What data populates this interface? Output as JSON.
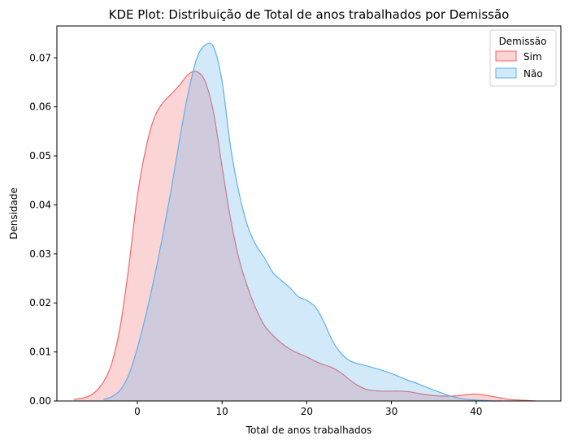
{
  "chart_data": {
    "type": "area",
    "title": "KDE Plot: Distribuição de Total de anos trabalhados por Demissão",
    "xlabel": "Total de anos trabalhados",
    "ylabel": "Densidade",
    "xlim": [
      -9.5,
      50
    ],
    "ylim": [
      0,
      0.0765
    ],
    "x_ticks": [
      0,
      10,
      20,
      30,
      40
    ],
    "y_ticks": [
      0.0,
      0.01,
      0.02,
      0.03,
      0.04,
      0.05,
      0.06,
      0.07
    ],
    "y_tick_labels": [
      "0.00",
      "0.01",
      "0.02",
      "0.03",
      "0.04",
      "0.05",
      "0.06",
      "0.07"
    ],
    "legend": {
      "title": "Demissão",
      "placement": "top-right"
    },
    "grid": false,
    "series": [
      {
        "name": "Sim",
        "color": "#f0686d",
        "fill": "#fdd3d5",
        "x": [
          -7.5,
          -6,
          -5,
          -4,
          -3,
          -2,
          -1,
          0,
          1,
          2,
          3,
          4,
          5,
          6,
          7,
          8,
          9,
          10,
          11,
          12,
          13,
          14,
          15,
          16,
          17,
          18,
          19,
          20,
          21,
          22,
          23,
          24,
          25,
          26,
          27,
          28,
          29,
          30,
          31,
          32,
          33,
          34,
          35,
          36,
          37,
          38,
          39,
          40,
          41,
          42,
          43,
          44,
          45,
          46,
          47
        ],
        "y": [
          0.0003,
          0.0008,
          0.0018,
          0.0039,
          0.0078,
          0.0154,
          0.0276,
          0.0418,
          0.0515,
          0.0578,
          0.0608,
          0.0626,
          0.0645,
          0.0666,
          0.0672,
          0.0652,
          0.0588,
          0.0478,
          0.0372,
          0.029,
          0.0233,
          0.0188,
          0.0154,
          0.0134,
          0.0118,
          0.0106,
          0.0097,
          0.009,
          0.0081,
          0.0074,
          0.0068,
          0.0058,
          0.0044,
          0.0032,
          0.0024,
          0.0021,
          0.002,
          0.002,
          0.002,
          0.0019,
          0.0016,
          0.0013,
          0.0011,
          0.001,
          0.001,
          0.0011,
          0.0013,
          0.0014,
          0.0012,
          0.0009,
          0.0006,
          0.0003,
          0.0002,
          0.0001,
          0.0
        ]
      },
      {
        "name": "Não",
        "color": "#5fb0ec",
        "fill": "#cfe4f8",
        "x": [
          -4,
          -3,
          -2,
          -1,
          0,
          1,
          2,
          3,
          4,
          5,
          6,
          7,
          8,
          9,
          10,
          11,
          12,
          13,
          14,
          15,
          16,
          17,
          18,
          19,
          20,
          21,
          22,
          23,
          24,
          25,
          26,
          27,
          28,
          29,
          30,
          31,
          32,
          33,
          34,
          35,
          36,
          37,
          38,
          39,
          40,
          41,
          42,
          43
        ],
        "y": [
          0.0003,
          0.0009,
          0.0023,
          0.0054,
          0.0108,
          0.0175,
          0.0252,
          0.0338,
          0.0432,
          0.0535,
          0.0628,
          0.0698,
          0.0726,
          0.0722,
          0.0652,
          0.0519,
          0.0425,
          0.0358,
          0.0318,
          0.0292,
          0.0262,
          0.0246,
          0.0231,
          0.0213,
          0.0205,
          0.0192,
          0.0162,
          0.0124,
          0.0098,
          0.0083,
          0.0076,
          0.0072,
          0.0067,
          0.0062,
          0.0056,
          0.0049,
          0.0042,
          0.0036,
          0.0029,
          0.0022,
          0.0016,
          0.001,
          0.0006,
          0.0003,
          0.0002,
          0.0001,
          0.0,
          0.0
        ]
      }
    ]
  }
}
